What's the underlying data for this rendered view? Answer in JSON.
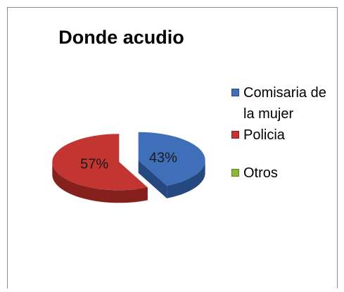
{
  "chart_data": {
    "type": "pie",
    "title": "Donde acudio",
    "style": "3d-exploded",
    "categories": [
      "Comisaria de la mujer",
      "Policia",
      "Otros"
    ],
    "values": [
      43,
      57,
      0
    ],
    "labels": [
      "43%",
      "57%",
      ""
    ],
    "colors": [
      "#3f6fb8",
      "#c23530",
      "#8fb83a"
    ],
    "side_colors": [
      "#24487f",
      "#85201c",
      "#5f7f22"
    ],
    "legend": {
      "position": "right",
      "entries": [
        "Comisaria de la mujer",
        "Policia",
        "Otros"
      ]
    }
  }
}
